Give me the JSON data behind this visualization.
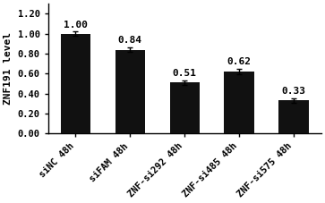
{
  "categories": [
    "siNC 48h",
    "siFAM 48h",
    "ZNF-si292 48h",
    "ZNF-si485 48h",
    "ZNF-si575 48h"
  ],
  "values": [
    1.0,
    0.84,
    0.51,
    0.62,
    0.33
  ],
  "errors": [
    0.02,
    0.02,
    0.02,
    0.03,
    0.02
  ],
  "bar_color": "#111111",
  "ylabel": "ZNF191 level",
  "ylim": [
    0.0,
    1.3
  ],
  "yticks": [
    0.0,
    0.2,
    0.4,
    0.6,
    0.8,
    1.0,
    1.2
  ],
  "value_labels": [
    "1.00",
    "0.84",
    "0.51",
    "0.62",
    "0.33"
  ],
  "bar_width": 0.55,
  "label_fontsize": 7.5,
  "tick_fontsize": 7.5,
  "ylabel_fontsize": 8,
  "value_label_fontsize": 8
}
